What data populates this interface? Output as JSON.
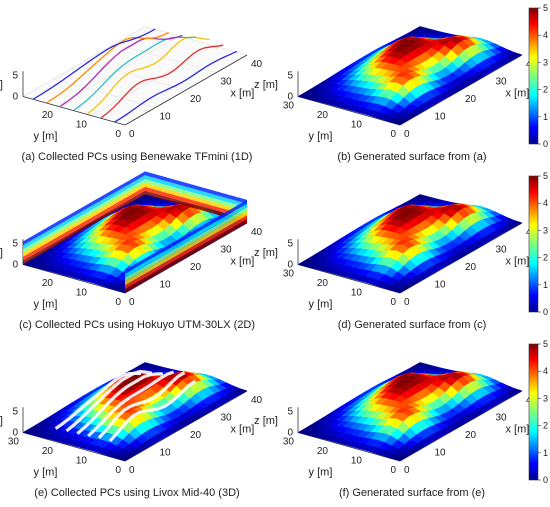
{
  "chart_data": {
    "type": "surface3d",
    "colormap": "jet",
    "panels": [
      {
        "id": "a",
        "caption": "(a) Collected PCs using Benewake TFmini (1D)",
        "kind": "lines1d",
        "colorbar": false,
        "zlabel": "z [m]",
        "ylabel": "y [m]",
        "xlabel": "x [m]",
        "zticks": [
          "0",
          "5"
        ],
        "yticks": [
          "0",
          "10",
          "20"
        ],
        "xticks": [
          "0",
          "10",
          "20",
          "30",
          "40"
        ]
      },
      {
        "id": "b",
        "caption": "(b) Generated surface from (a)",
        "kind": "surface",
        "colorbar": true,
        "zlabel": "z [m]",
        "ylabel": "y [m]",
        "xlabel": "x [m]",
        "zticks": [
          "0",
          "5"
        ],
        "yticks": [
          "0",
          "10",
          "20",
          "30"
        ],
        "xticks": [
          "0",
          "10",
          "20",
          "30",
          "40"
        ]
      },
      {
        "id": "c",
        "caption": "(c) Collected PCs using Hokuyo UTM-30LX (2D)",
        "kind": "walls2d",
        "colorbar": false,
        "zlabel": "z [m]",
        "ylabel": "y [m]",
        "xlabel": "x [m]",
        "zticks": [
          "0",
          "5"
        ],
        "yticks": [
          "0",
          "10",
          "20"
        ],
        "xticks": [
          "0",
          "10",
          "20",
          "30",
          "40"
        ]
      },
      {
        "id": "d",
        "caption": "(d) Generated surface from (c)",
        "kind": "surface",
        "colorbar": true,
        "zlabel": "z [m]",
        "ylabel": "y [m]",
        "xlabel": "x [m]",
        "zticks": [
          "0",
          "5"
        ],
        "yticks": [
          "0",
          "10",
          "20",
          "30"
        ],
        "xticks": [
          "0",
          "10",
          "20",
          "30",
          "40"
        ]
      },
      {
        "id": "e",
        "caption": "(e) Collected PCs using Livox Mid-40 (3D)",
        "kind": "stripes3d",
        "colorbar": false,
        "zlabel": "z [m]",
        "ylabel": "y [m]",
        "xlabel": "x [m]",
        "zticks": [
          "0",
          "5"
        ],
        "yticks": [
          "0",
          "10",
          "20",
          "30"
        ],
        "xticks": [
          "0",
          "10",
          "20",
          "30",
          "40"
        ]
      },
      {
        "id": "f",
        "caption": "(f) Generated surface from (e)",
        "kind": "surface",
        "colorbar": true,
        "zlabel": "z [m]",
        "ylabel": "y [m]",
        "xlabel": "x [m]",
        "zticks": [
          "0",
          "5"
        ],
        "yticks": [
          "0",
          "10",
          "20",
          "30"
        ],
        "xticks": [
          "0",
          "10",
          "20",
          "30",
          "40"
        ]
      }
    ],
    "colorbar": {
      "ticks": [
        "0",
        "1",
        "2",
        "3",
        "4",
        "5"
      ],
      "clim": [
        0,
        5
      ]
    },
    "xlim": [
      0,
      40
    ],
    "ylim": [
      0,
      30
    ],
    "zlim": [
      0,
      5
    ]
  }
}
